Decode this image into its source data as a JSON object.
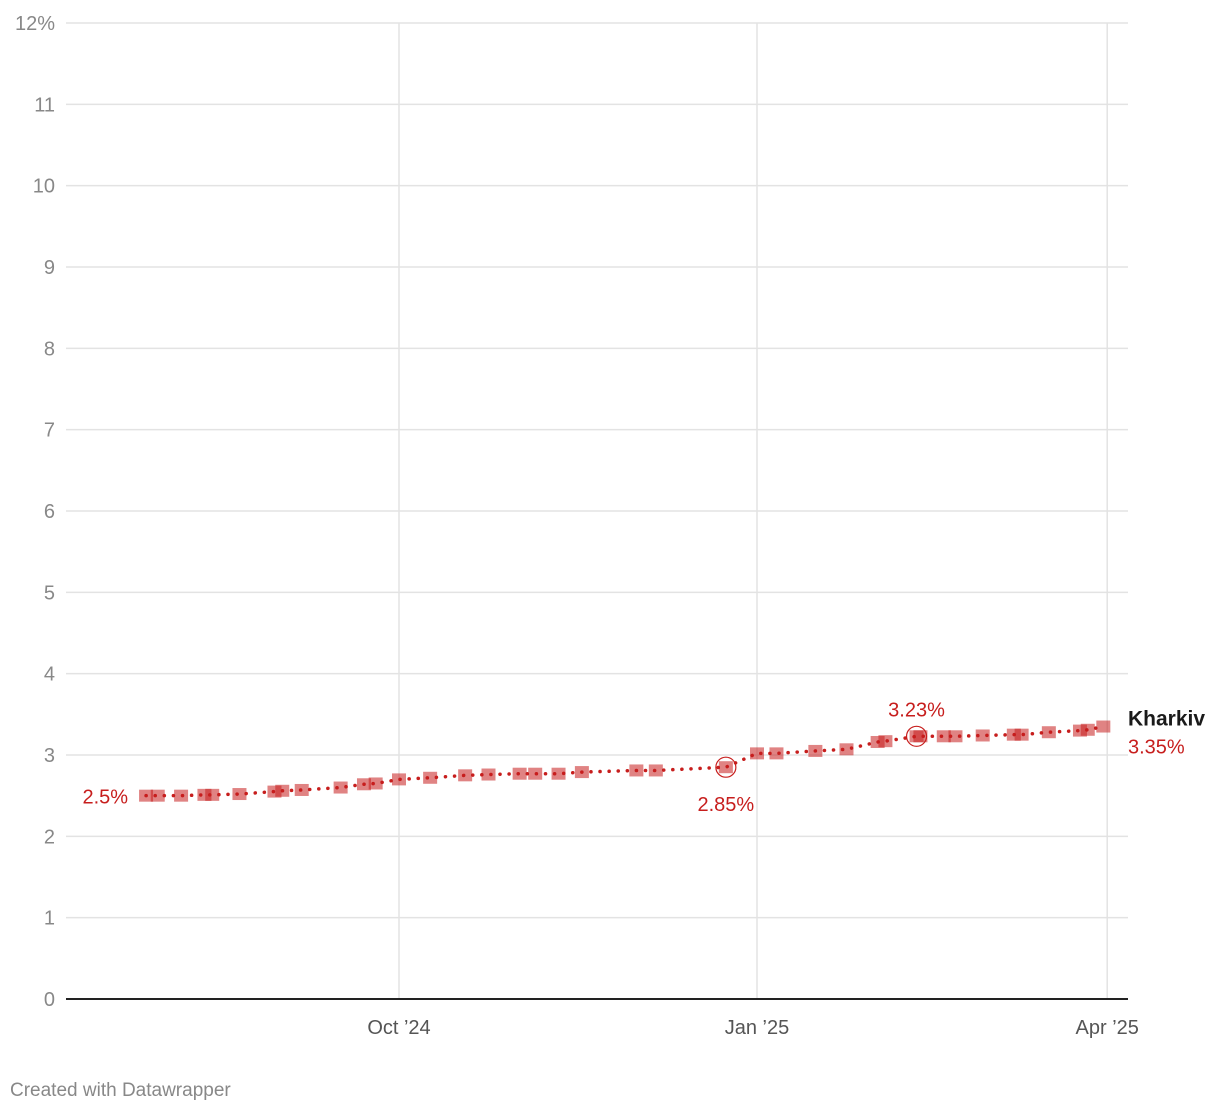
{
  "chart_data": {
    "type": "line",
    "title": "",
    "xlabel": "",
    "ylabel": "",
    "ylim": [
      0,
      12
    ],
    "y_ticks": [
      "0",
      "1",
      "2",
      "3",
      "4",
      "5",
      "6",
      "7",
      "8",
      "9",
      "10",
      "11",
      "12%"
    ],
    "x_ticks": [
      {
        "date": "2024-10-01",
        "label": "Oct ’24"
      },
      {
        "date": "2025-01-01",
        "label": "Jan ’25"
      },
      {
        "date": "2025-04-01",
        "label": "Apr ’25"
      }
    ],
    "grid": true,
    "series": [
      {
        "name": "Kharkiv",
        "color": "#c71e1d",
        "points": [
          [
            "2024-07-28",
            2.5
          ],
          [
            "2024-07-31",
            2.5
          ],
          [
            "2024-08-06",
            2.5
          ],
          [
            "2024-08-12",
            2.51
          ],
          [
            "2024-08-14",
            2.51
          ],
          [
            "2024-08-21",
            2.52
          ],
          [
            "2024-08-30",
            2.55
          ],
          [
            "2024-09-01",
            2.56
          ],
          [
            "2024-09-06",
            2.57
          ],
          [
            "2024-09-16",
            2.6
          ],
          [
            "2024-09-22",
            2.64
          ],
          [
            "2024-09-25",
            2.65
          ],
          [
            "2024-10-01",
            2.7
          ],
          [
            "2024-10-09",
            2.72
          ],
          [
            "2024-10-18",
            2.75
          ],
          [
            "2024-10-24",
            2.76
          ],
          [
            "2024-11-01",
            2.77
          ],
          [
            "2024-11-05",
            2.77
          ],
          [
            "2024-11-11",
            2.77
          ],
          [
            "2024-11-17",
            2.79
          ],
          [
            "2024-12-01",
            2.81
          ],
          [
            "2024-12-06",
            2.81
          ],
          [
            "2024-12-24",
            2.85
          ],
          [
            "2025-01-01",
            3.02
          ],
          [
            "2025-01-06",
            3.02
          ],
          [
            "2025-01-16",
            3.05
          ],
          [
            "2025-01-24",
            3.07
          ],
          [
            "2025-02-01",
            3.16
          ],
          [
            "2025-02-03",
            3.17
          ],
          [
            "2025-02-11",
            3.23
          ],
          [
            "2025-02-12",
            3.23
          ],
          [
            "2025-02-18",
            3.23
          ],
          [
            "2025-02-21",
            3.23
          ],
          [
            "2025-02-28",
            3.24
          ],
          [
            "2025-03-08",
            3.25
          ],
          [
            "2025-03-10",
            3.25
          ],
          [
            "2025-03-17",
            3.28
          ],
          [
            "2025-03-25",
            3.3
          ],
          [
            "2025-03-27",
            3.31
          ],
          [
            "2025-03-31",
            3.35
          ]
        ]
      }
    ],
    "annotations": [
      {
        "date": "2024-07-28",
        "value": 2.5,
        "label": "2.5%",
        "pos": "left"
      },
      {
        "date": "2024-12-24",
        "value": 2.85,
        "label": "2.85%",
        "pos": "below",
        "circle": true
      },
      {
        "date": "2025-02-11",
        "value": 3.23,
        "label": "3.23%",
        "pos": "above",
        "circle": true
      }
    ],
    "end_label": {
      "name": "Kharkiv",
      "value": "3.35%"
    }
  },
  "footer": {
    "credit": "Created with Datawrapper"
  }
}
